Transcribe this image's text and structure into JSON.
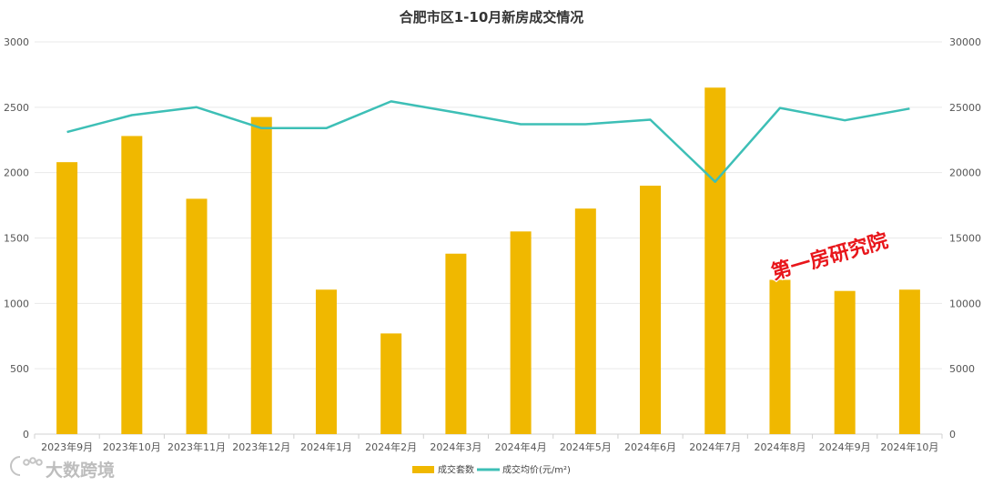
{
  "chart_data": {
    "type": "bar",
    "title": "合肥市区1-10月新房成交情况",
    "categories": [
      "2023年9月",
      "2023年10月",
      "2023年11月",
      "2023年12月",
      "2024年1月",
      "2024年2月",
      "2024年3月",
      "2024年4月",
      "2024年5月",
      "2024年6月",
      "2024年7月",
      "2024年8月",
      "2024年9月",
      "2024年10月"
    ],
    "series": [
      {
        "name": "成交套数",
        "type": "bar",
        "axis": "left",
        "color": "#f0b800",
        "values": [
          2080,
          2280,
          1800,
          2425,
          1105,
          770,
          1380,
          1550,
          1725,
          1900,
          2650,
          1180,
          1095,
          1105
        ]
      },
      {
        "name": "成交均价(元/m²)",
        "type": "line",
        "axis": "right",
        "color": "#3dbfb6",
        "values": [
          23100,
          24400,
          25000,
          23400,
          23400,
          25450,
          24600,
          23700,
          23700,
          24050,
          19300,
          24950,
          24000,
          24900
        ]
      }
    ],
    "ylim_left": [
      0,
      3000
    ],
    "yticks_left": [
      "0",
      "500",
      "1000",
      "1500",
      "2000",
      "2500",
      "3000"
    ],
    "ylim_right": [
      0,
      30000
    ],
    "yticks_right": [
      "0",
      "5000",
      "10000",
      "15000",
      "20000",
      "25000",
      "30000"
    ],
    "grid": true,
    "legend_position": "bottom-center"
  },
  "watermarks": {
    "stamp": "第一房研究院",
    "brand": "大数跨境",
    "brand_icon": "paw-logo-icon"
  }
}
